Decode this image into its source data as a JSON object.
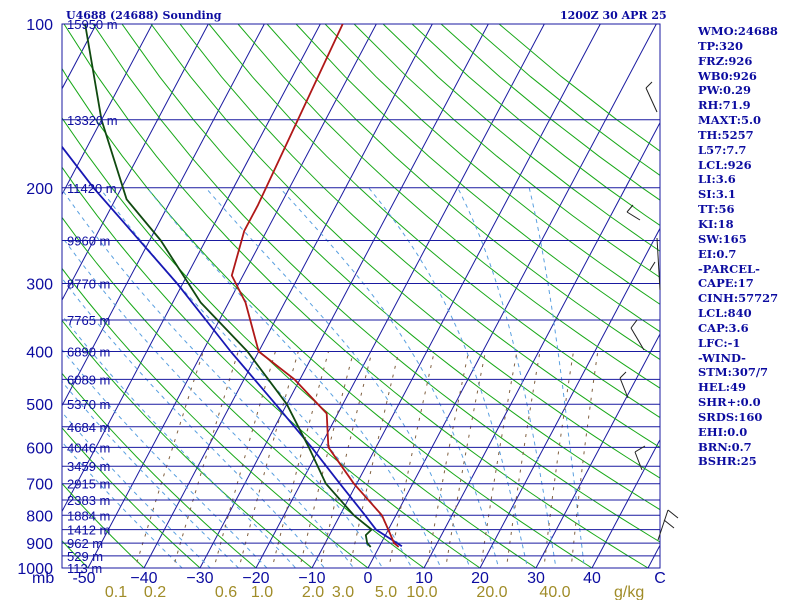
{
  "header": {
    "title": "U4688 (24688) Sounding",
    "time": "1200Z 30 APR 25"
  },
  "indices": [
    "WMO:24688",
    "TP:320",
    "FRZ:926",
    "WB0:926",
    "PW:0.29",
    "RH:71.9",
    "MAXT:5.0",
    "TH:5257",
    "L57:7.7",
    "LCL:926",
    "LI:3.6",
    "SI:3.1",
    "TT:56",
    "KI:18",
    "SW:165",
    "EI:0.7",
    "-PARCEL-",
    "CAPE:17",
    "CINH:57727",
    "LCL:840",
    "CAP:3.6",
    "LFC:-1",
    "-WIND-",
    "STM:307/7",
    "HEL:49",
    "SHR+:0.0",
    "SRDS:160",
    "EHI:0.0",
    "BRN:0.7",
    "BSHR:25"
  ],
  "colors": {
    "isobar": "#1a1aa0",
    "isotherm": "#1a1aa0",
    "dry_adiabat": "#18a818",
    "moist_adiabat": "#5aa0e0",
    "mixing_ratio": "#806040",
    "temperature": "#b01818",
    "dewpoint": "#104a10",
    "parcel": "#1818b4",
    "label": "#0c0ca0",
    "mixing_label": "#a08c28"
  },
  "chart_data": {
    "type": "skew-t",
    "title": "U4688 (24688) Sounding",
    "pressure_unit": "mb",
    "mixing_ratio_unit": "g/kg",
    "pressure_ticks": [
      100,
      200,
      300,
      400,
      500,
      600,
      700,
      800,
      900,
      1000
    ],
    "temperature_ticks": [
      -50,
      -40,
      -30,
      -20,
      -10,
      0,
      10,
      20,
      30,
      40
    ],
    "temperature_tick_labels": [
      "-50",
      "−40",
      "−30",
      "−20",
      "−10",
      "0",
      "10",
      "20",
      "30",
      "40"
    ],
    "temperature_unit": "C",
    "mixing_ratio_labels": [
      "0.1",
      "0.2",
      "0.6",
      "1.0",
      "2.0",
      "3.0",
      "5.0",
      "10.0",
      "20.0",
      "40.0"
    ],
    "mixing_ratio_values": [
      0.1,
      0.2,
      0.6,
      1.0,
      2.0,
      3.0,
      5.0,
      10.0,
      20.0,
      40.0
    ],
    "height_levels": [
      {
        "p": 100,
        "label": "15950 m"
      },
      {
        "p": 150,
        "label": "13320 m"
      },
      {
        "p": 200,
        "label": "11420 m"
      },
      {
        "p": 250,
        "label": "9960 m"
      },
      {
        "p": 300,
        "label": "8770 m"
      },
      {
        "p": 350,
        "label": "7765 m"
      },
      {
        "p": 400,
        "label": "6890 m"
      },
      {
        "p": 450,
        "label": "6089 m"
      },
      {
        "p": 500,
        "label": "5370 m"
      },
      {
        "p": 550,
        "label": "4684 m"
      },
      {
        "p": 600,
        "label": "4046 m"
      },
      {
        "p": 650,
        "label": "3459 m"
      },
      {
        "p": 700,
        "label": "2915 m"
      },
      {
        "p": 750,
        "label": "2383 m"
      },
      {
        "p": 800,
        "label": "1884 m"
      },
      {
        "p": 850,
        "label": "1412 m"
      },
      {
        "p": 900,
        "label": "962 m"
      },
      {
        "p": 950,
        "label": "529 m"
      },
      {
        "p": 1000,
        "label": "113 m"
      }
    ],
    "temperature": [
      {
        "p": 915,
        "t": 3.5
      },
      {
        "p": 900,
        "t": 2.3
      },
      {
        "p": 850,
        "t": 0.0
      },
      {
        "p": 800,
        "t": -2.5
      },
      {
        "p": 700,
        "t": -10.5
      },
      {
        "p": 600,
        "t": -18.5
      },
      {
        "p": 520,
        "t": -22.0
      },
      {
        "p": 450,
        "t": -31.0
      },
      {
        "p": 400,
        "t": -40.0
      },
      {
        "p": 325,
        "t": -47.0
      },
      {
        "p": 290,
        "t": -52.0
      },
      {
        "p": 240,
        "t": -54.0
      },
      {
        "p": 215,
        "t": -54.0
      },
      {
        "p": 100,
        "t": -56.0
      }
    ],
    "dewpoint": [
      {
        "p": 915,
        "t": -1.5
      },
      {
        "p": 900,
        "t": -2.5
      },
      {
        "p": 870,
        "t": -3.5
      },
      {
        "p": 850,
        "t": -3.0
      },
      {
        "p": 800,
        "t": -7.5
      },
      {
        "p": 700,
        "t": -15.5
      },
      {
        "p": 600,
        "t": -22.0
      },
      {
        "p": 500,
        "t": -30.0
      },
      {
        "p": 400,
        "t": -42.0
      },
      {
        "p": 325,
        "t": -55.0
      },
      {
        "p": 250,
        "t": -68.0
      },
      {
        "p": 210,
        "t": -78.0
      },
      {
        "p": 150,
        "t": -90.0
      },
      {
        "p": 100,
        "t": -102.0
      }
    ],
    "parcel": [
      {
        "p": 912,
        "t": 4.0
      },
      {
        "p": 850,
        "t": -2.2
      },
      {
        "p": 800,
        "t": -5.5
      },
      {
        "p": 700,
        "t": -13.0
      },
      {
        "p": 600,
        "t": -21.5
      },
      {
        "p": 500,
        "t": -32.0
      },
      {
        "p": 400,
        "t": -45.0
      },
      {
        "p": 300,
        "t": -61.0
      },
      {
        "p": 200,
        "t": -85.0
      },
      {
        "p": 100,
        "t": -123.0
      }
    ]
  }
}
